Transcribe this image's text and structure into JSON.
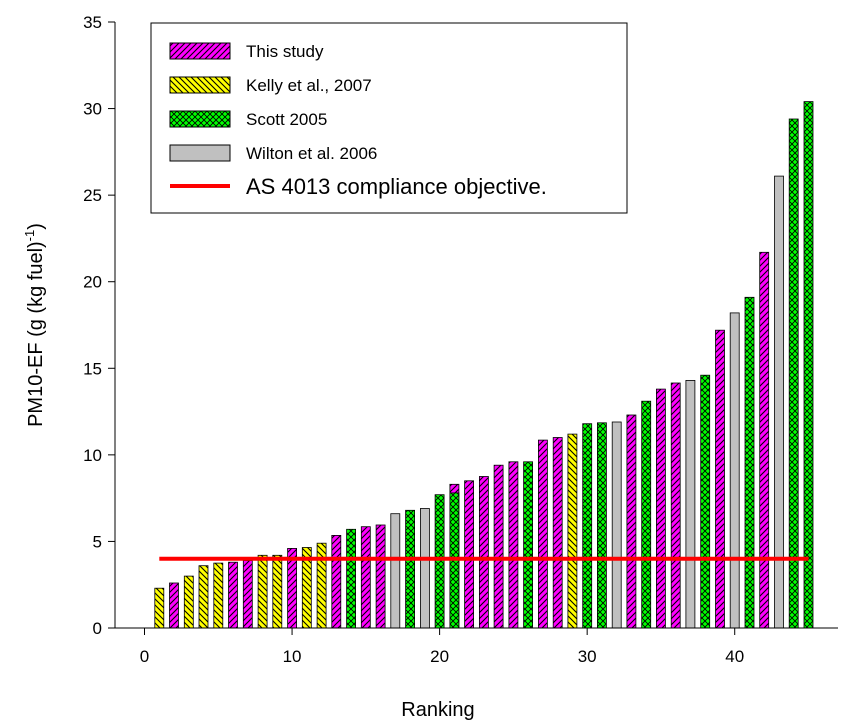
{
  "chart_data": {
    "type": "bar",
    "xlabel": "Ranking",
    "ylabel": "PM10-EF (g (kg fuel)",
    "ylabel_sup": "-1",
    "ylabel_close": ")",
    "xlim": [
      -2,
      47
    ],
    "ylim": [
      0,
      35
    ],
    "xticks": [
      0,
      10,
      20,
      30,
      40
    ],
    "yticks": [
      0,
      5,
      10,
      15,
      20,
      25,
      30,
      35
    ],
    "grid": false,
    "legend_position": "top-left",
    "series": [
      {
        "name": "This study",
        "color": "#ff00ff",
        "pattern": "diagonal-hatch",
        "x": [
          2,
          6,
          7,
          10,
          13,
          15,
          16,
          21,
          22,
          23,
          24,
          25,
          27,
          28,
          33,
          35,
          36,
          39,
          42
        ],
        "values": [
          2.6,
          3.8,
          3.9,
          4.6,
          5.35,
          5.85,
          5.95,
          8.3,
          8.5,
          8.75,
          9.4,
          9.6,
          10.85,
          11.0,
          12.3,
          13.8,
          14.15,
          17.2,
          21.7
        ]
      },
      {
        "name": "Kelly et al., 2007",
        "color": "#ffff00",
        "pattern": "diagonal-hatch-reverse",
        "x": [
          1,
          3,
          4,
          5,
          8,
          9,
          11,
          12,
          29
        ],
        "values": [
          2.3,
          3.0,
          3.6,
          3.75,
          4.2,
          4.2,
          4.65,
          4.9,
          11.2
        ]
      },
      {
        "name": "Scott 2005",
        "color": "#00ff00",
        "pattern": "crosshatch",
        "x": [
          14,
          18,
          20,
          21,
          26,
          30,
          31,
          34,
          38,
          41,
          44,
          45
        ],
        "values": [
          5.7,
          6.8,
          7.7,
          7.8,
          9.6,
          11.8,
          11.85,
          13.1,
          14.6,
          19.1,
          29.4,
          30.4
        ]
      },
      {
        "name": "Wilton et al. 2006",
        "color": "#c0c0c0",
        "pattern": "solid",
        "x": [
          17,
          19,
          32,
          37,
          40,
          43
        ],
        "values": [
          6.6,
          6.9,
          11.9,
          14.3,
          18.2,
          26.1
        ]
      }
    ],
    "reference_line": {
      "name": "AS 4013 compliance objective.",
      "y": 4,
      "x_range": [
        1,
        45
      ],
      "color": "#ff0000"
    }
  }
}
